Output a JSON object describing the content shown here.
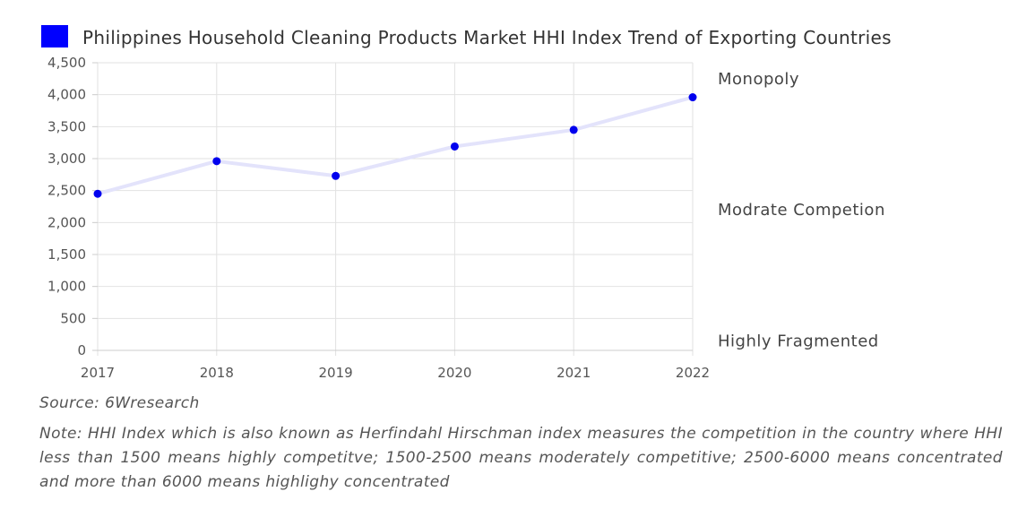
{
  "chart_data": {
    "type": "line",
    "legend": {
      "label": "Philippines Household Cleaning Products Market HHI Index Trend of Exporting Countries",
      "color": "#0000ff",
      "placement": "top"
    },
    "categories": [
      "2017",
      "2018",
      "2019",
      "2020",
      "2021",
      "2022"
    ],
    "series": [
      {
        "name": "Philippines Household Cleaning Products Market HHI Index Trend of Exporting Countries",
        "values": [
          2450,
          2960,
          2730,
          3190,
          3450,
          3960
        ],
        "line_color": "#e3e3fb",
        "point_color": "#0000ee"
      }
    ],
    "ylim": [
      0,
      4500
    ],
    "yticks": [
      0,
      500,
      1000,
      1500,
      2000,
      2500,
      3000,
      3500,
      4000,
      4500
    ],
    "ytick_labels": [
      "0",
      "500",
      "1,000",
      "1,500",
      "2,000",
      "2,500",
      "3,000",
      "3,500",
      "4,000",
      "4,500"
    ],
    "grid": true,
    "band_labels": [
      {
        "text": "Monopoly",
        "value": 4250
      },
      {
        "text": "Modrate Competion",
        "value": 2200
      },
      {
        "text": "Highly Fragmented",
        "value": 150
      }
    ]
  },
  "footer": {
    "source": "Source: 6Wresearch",
    "note": "Note: HHI Index which is also known as Herfindahl Hirschman index measures the competition in the country where HHI less than 1500 means highly competitve; 1500-2500 means moderately competitive; 2500-6000 means concentrated and more than 6000 means highlighy concentrated"
  }
}
